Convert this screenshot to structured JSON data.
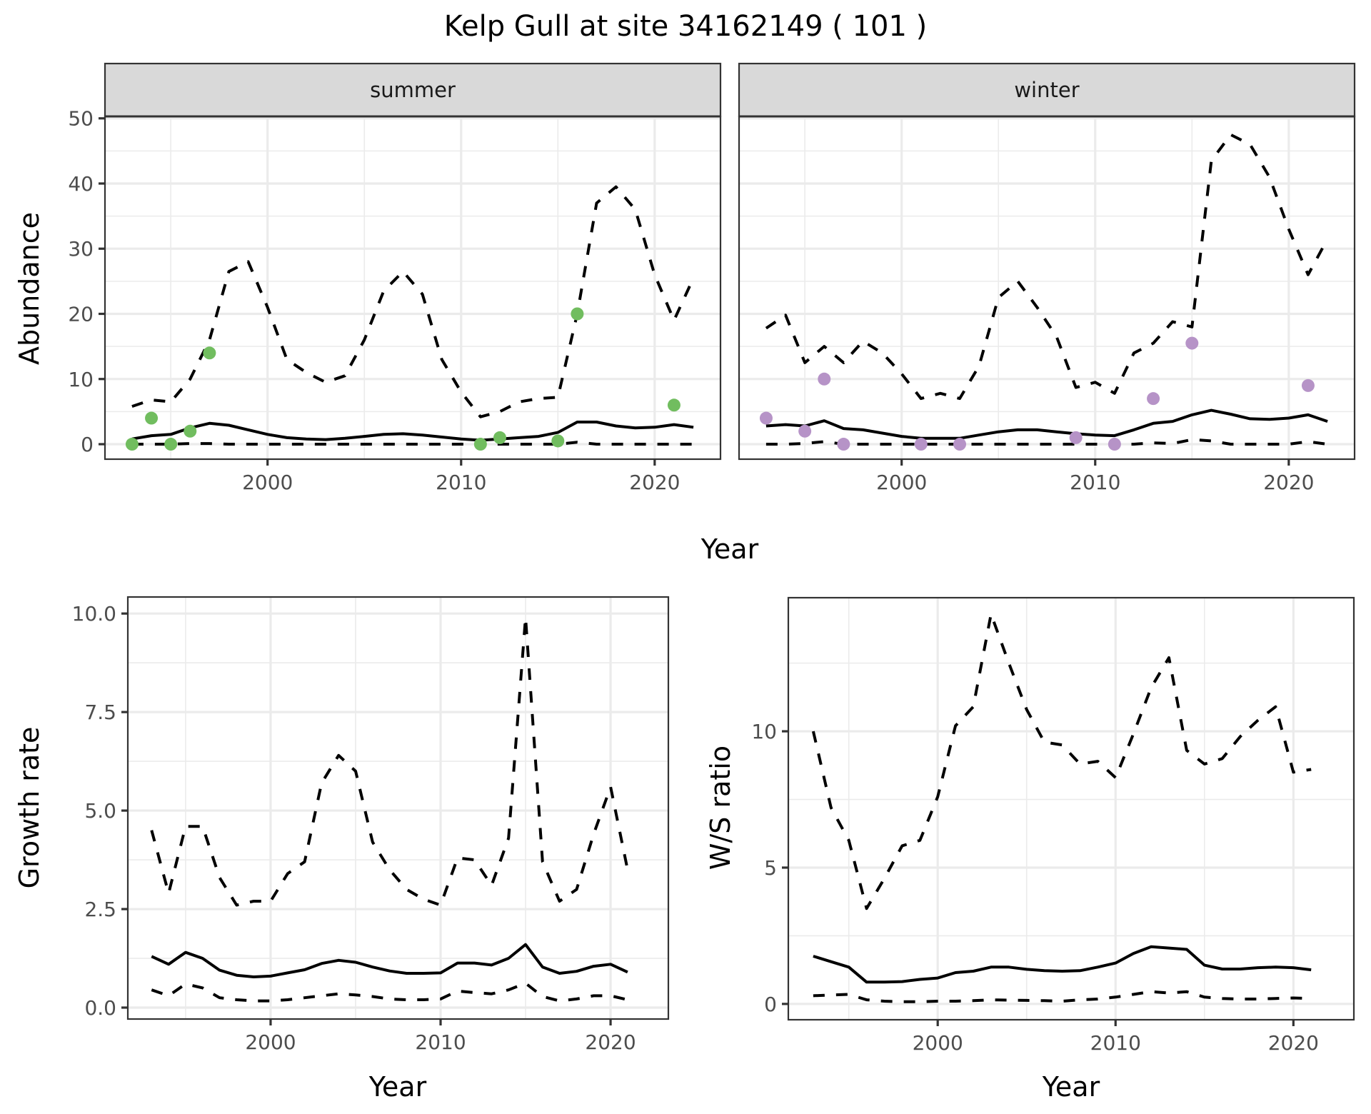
{
  "title": "Kelp Gull at site 34162149 ( 101 )",
  "colors": {
    "summer_points": "#71BD5F",
    "winter_points": "#B693C7",
    "lines": "#000000",
    "strip": "#D9D9D9",
    "grid": "#EBEBEB",
    "border": "#333333"
  },
  "chart_data": [
    {
      "type": "line",
      "panel": "summer",
      "strip_label": "summer",
      "xlabel": "Year",
      "ylabel": "Abundance",
      "xlim": [
        1991.6,
        2023.4
      ],
      "ylim": [
        -2.3,
        50.3
      ],
      "xticks": [
        2000,
        2010,
        2020
      ],
      "xtick_labels": [
        "2000",
        "2010",
        "2020"
      ],
      "yticks": [
        0,
        10,
        20,
        30,
        40,
        50
      ],
      "ytick_labels": [
        "0",
        "10",
        "20",
        "30",
        "40",
        "50"
      ],
      "grid": true,
      "x": [
        1993,
        1994,
        1995,
        1996,
        1997,
        1998,
        1999,
        2000,
        2001,
        2002,
        2003,
        2004,
        2005,
        2006,
        2007,
        2008,
        2009,
        2010,
        2011,
        2012,
        2013,
        2014,
        2015,
        2016,
        2017,
        2018,
        2019,
        2020,
        2021,
        2022
      ],
      "series": [
        {
          "name": "upper",
          "style": "dashed",
          "values": [
            5.8,
            6.8,
            6.5,
            10,
            16,
            26.5,
            28,
            21,
            13,
            11,
            9.5,
            10.5,
            16,
            23.5,
            26.5,
            23,
            13,
            8,
            4.2,
            5,
            6.5,
            7,
            7.2,
            20,
            37,
            39.5,
            36,
            26,
            19,
            25.5
          ]
        },
        {
          "name": "estimate",
          "style": "solid",
          "values": [
            0.8,
            1.3,
            1.5,
            2.5,
            3.2,
            2.9,
            2.2,
            1.5,
            1,
            0.8,
            0.7,
            0.9,
            1.2,
            1.5,
            1.6,
            1.4,
            1.1,
            0.8,
            0.6,
            0.8,
            1,
            1.2,
            1.8,
            3.4,
            3.4,
            2.8,
            2.5,
            2.6,
            3,
            2.6
          ]
        },
        {
          "name": "lower",
          "style": "dashed",
          "values": [
            0,
            0,
            0,
            0.1,
            0.1,
            0,
            0,
            0,
            0,
            0,
            0,
            0,
            0,
            0,
            0,
            0,
            0,
            0,
            0,
            0,
            0,
            0,
            0,
            0.3,
            0,
            0,
            0,
            0,
            0,
            0
          ]
        }
      ],
      "points": {
        "x": [
          1993,
          1994,
          1995,
          1996,
          1997,
          2011,
          2012,
          2015,
          2016,
          2021
        ],
        "y": [
          0,
          4,
          0,
          2,
          14,
          0,
          1,
          0.5,
          20,
          6
        ]
      }
    },
    {
      "type": "line",
      "panel": "winter",
      "strip_label": "winter",
      "xlabel": "Year",
      "ylabel": "Abundance",
      "xlim": [
        1991.6,
        2023.4
      ],
      "ylim": [
        -2.3,
        50.3
      ],
      "xticks": [
        2000,
        2010,
        2020
      ],
      "xtick_labels": [
        "2000",
        "2010",
        "2020"
      ],
      "grid": true,
      "x": [
        1993,
        1994,
        1995,
        1996,
        1997,
        1998,
        1999,
        2000,
        2001,
        2002,
        2003,
        2004,
        2005,
        2006,
        2007,
        2008,
        2009,
        2010,
        2011,
        2012,
        2013,
        2014,
        2015,
        2016,
        2017,
        2018,
        2019,
        2020,
        2021,
        2022
      ],
      "series": [
        {
          "name": "upper",
          "style": "dashed",
          "values": [
            17.8,
            19.8,
            12.5,
            15,
            12.5,
            15.8,
            14,
            10.8,
            7,
            7.8,
            7,
            12,
            22.5,
            25,
            21,
            16.5,
            8.7,
            9.5,
            7.8,
            14,
            15.5,
            18.8,
            18,
            43.5,
            47.5,
            46,
            41,
            33,
            26,
            31.5
          ]
        },
        {
          "name": "estimate",
          "style": "solid",
          "values": [
            2.8,
            3,
            2.8,
            3.6,
            2.4,
            2.2,
            1.7,
            1.2,
            0.9,
            0.9,
            0.9,
            1.4,
            1.9,
            2.2,
            2.2,
            1.9,
            1.6,
            1.4,
            1.3,
            2.2,
            3.2,
            3.5,
            4.5,
            5.2,
            4.6,
            3.9,
            3.8,
            4,
            4.5,
            3.5
          ]
        },
        {
          "name": "lower",
          "style": "dashed",
          "values": [
            0,
            0,
            0.1,
            0.4,
            0,
            0,
            0,
            0,
            0,
            0,
            0,
            0,
            0,
            0,
            0,
            0,
            0,
            0,
            0,
            0,
            0.2,
            0.1,
            0.7,
            0.5,
            0,
            0,
            0,
            0,
            0.4,
            0
          ]
        }
      ],
      "points": {
        "x": [
          1993,
          1995,
          1996,
          1997,
          2001,
          2003,
          2009,
          2011,
          2013,
          2015,
          2021
        ],
        "y": [
          4,
          2,
          10,
          0,
          0,
          0,
          1,
          0,
          7,
          15.5,
          9
        ]
      }
    },
    {
      "type": "line",
      "panel": "growth",
      "xlabel": "Year",
      "ylabel": "Growth rate",
      "xlim": [
        1991.6,
        2023.4
      ],
      "ylim": [
        -0.29,
        10.42
      ],
      "xticks": [
        2000,
        2010,
        2020
      ],
      "xtick_labels": [
        "2000",
        "2010",
        "2020"
      ],
      "yticks": [
        0,
        2.5,
        5,
        7.5,
        10
      ],
      "ytick_labels": [
        "0.0",
        "2.5",
        "5.0",
        "7.5",
        "10.0"
      ],
      "grid": true,
      "x": [
        1993,
        1994,
        1995,
        1996,
        1997,
        1998,
        1999,
        2000,
        2001,
        2002,
        2003,
        2004,
        2005,
        2006,
        2007,
        2008,
        2009,
        2010,
        2011,
        2012,
        2013,
        2014,
        2015,
        2016,
        2017,
        2018,
        2019,
        2020,
        2021
      ],
      "series": [
        {
          "name": "upper",
          "style": "dashed",
          "values": [
            4.5,
            2.9,
            4.6,
            4.6,
            3.3,
            2.6,
            2.7,
            2.7,
            3.4,
            3.7,
            5.7,
            6.4,
            6.0,
            4.2,
            3.5,
            3.0,
            2.75,
            2.6,
            3.8,
            3.75,
            3.1,
            4.3,
            9.9,
            3.7,
            2.7,
            3.0,
            4.4,
            5.6,
            3.5
          ]
        },
        {
          "name": "estimate",
          "style": "solid",
          "values": [
            1.3,
            1.1,
            1.4,
            1.25,
            0.95,
            0.82,
            0.78,
            0.8,
            0.88,
            0.96,
            1.12,
            1.2,
            1.15,
            1.03,
            0.93,
            0.87,
            0.87,
            0.88,
            1.13,
            1.13,
            1.08,
            1.25,
            1.6,
            1.03,
            0.87,
            0.92,
            1.05,
            1.1,
            0.9
          ]
        },
        {
          "name": "lower",
          "style": "dashed",
          "values": [
            0.45,
            0.3,
            0.6,
            0.5,
            0.25,
            0.2,
            0.17,
            0.17,
            0.2,
            0.25,
            0.3,
            0.35,
            0.32,
            0.28,
            0.22,
            0.2,
            0.2,
            0.22,
            0.42,
            0.38,
            0.35,
            0.45,
            0.62,
            0.28,
            0.17,
            0.22,
            0.3,
            0.3,
            0.2
          ]
        }
      ]
    },
    {
      "type": "line",
      "panel": "ws_ratio",
      "xlabel": "Year",
      "ylabel": "W/S ratio",
      "xlim": [
        1991.6,
        2023.4
      ],
      "ylim": [
        -0.58,
        14.9
      ],
      "xticks": [
        2000,
        2010,
        2020
      ],
      "xtick_labels": [
        "2000",
        "2010",
        "2020"
      ],
      "yticks": [
        0,
        5,
        10
      ],
      "ytick_labels": [
        "0",
        "5",
        "10"
      ],
      "grid": true,
      "x": [
        1993,
        1994,
        1995,
        1996,
        1997,
        1998,
        1999,
        2000,
        2001,
        2002,
        2003,
        2004,
        2005,
        2006,
        2007,
        2008,
        2009,
        2010,
        2011,
        2012,
        2013,
        2014,
        2015,
        2016,
        2017,
        2018,
        2019,
        2020,
        2021
      ],
      "series": [
        {
          "name": "upper",
          "style": "dashed",
          "values": [
            10.0,
            7.2,
            6.0,
            3.5,
            4.6,
            5.8,
            6.0,
            7.6,
            10.2,
            10.9,
            14.3,
            12.5,
            10.8,
            9.6,
            9.5,
            8.8,
            8.9,
            8.3,
            9.9,
            11.6,
            12.7,
            9.3,
            8.8,
            9.0,
            9.8,
            10.4,
            10.9,
            8.5,
            8.6
          ]
        },
        {
          "name": "estimate",
          "style": "solid",
          "values": [
            1.75,
            1.55,
            1.35,
            0.8,
            0.8,
            0.82,
            0.9,
            0.95,
            1.15,
            1.2,
            1.35,
            1.35,
            1.27,
            1.22,
            1.2,
            1.22,
            1.35,
            1.5,
            1.85,
            2.1,
            2.05,
            2.0,
            1.42,
            1.28,
            1.28,
            1.33,
            1.35,
            1.33,
            1.25
          ]
        },
        {
          "name": "lower",
          "style": "dashed",
          "values": [
            0.3,
            0.33,
            0.35,
            0.15,
            0.1,
            0.08,
            0.08,
            0.1,
            0.1,
            0.12,
            0.15,
            0.14,
            0.13,
            0.12,
            0.1,
            0.15,
            0.18,
            0.25,
            0.35,
            0.45,
            0.4,
            0.45,
            0.25,
            0.2,
            0.18,
            0.18,
            0.2,
            0.22,
            0.2
          ]
        }
      ]
    }
  ]
}
